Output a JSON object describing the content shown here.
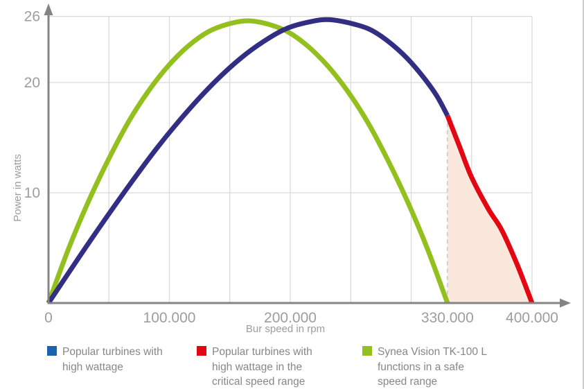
{
  "chart_data": {
    "type": "line",
    "xlabel": "Bur speed in rpm",
    "ylabel": "Power in watts",
    "xlim": [
      0,
      430000
    ],
    "ylim": [
      0,
      27.5
    ],
    "grid": {
      "x_interval": 50000,
      "x_max": 400000,
      "y_values": [
        10,
        20,
        26
      ],
      "color": "#dadada"
    },
    "x_ticks": [
      {
        "value": 0,
        "label": "0"
      },
      {
        "value": 100000,
        "label": "100.000"
      },
      {
        "value": 200000,
        "label": "200.000"
      },
      {
        "value": 330000,
        "label": "330.000"
      },
      {
        "value": 400000,
        "label": "400.000"
      }
    ],
    "y_ticks": [
      {
        "value": 10,
        "label": "10"
      },
      {
        "value": 20,
        "label": "20"
      },
      {
        "value": 26,
        "label": "26"
      }
    ],
    "axis_color": "#848484",
    "series": [
      {
        "name": "Synea Vision TK-100 L functions in a safe speed range",
        "color": "#93c01f",
        "points": [
          [
            0,
            0
          ],
          [
            16500,
            4.9
          ],
          [
            33000,
            9.2
          ],
          [
            49500,
            13.0
          ],
          [
            66000,
            16.4
          ],
          [
            82500,
            19.2
          ],
          [
            99000,
            21.5
          ],
          [
            115500,
            23.3
          ],
          [
            132000,
            24.6
          ],
          [
            148500,
            25.3
          ],
          [
            165000,
            25.6
          ],
          [
            181500,
            25.3
          ],
          [
            198000,
            24.6
          ],
          [
            214500,
            23.3
          ],
          [
            231000,
            21.5
          ],
          [
            247500,
            19.2
          ],
          [
            264000,
            16.4
          ],
          [
            280500,
            13.0
          ],
          [
            297000,
            9.2
          ],
          [
            313500,
            4.9
          ],
          [
            330000,
            0
          ]
        ]
      },
      {
        "name": "Popular turbines with high wattage",
        "color": "#312e83",
        "points": [
          [
            0,
            0
          ],
          [
            33000,
            5.4
          ],
          [
            63000,
            10.1
          ],
          [
            90000,
            14.1
          ],
          [
            115000,
            17.4
          ],
          [
            138000,
            20.1
          ],
          [
            159000,
            22.2
          ],
          [
            179000,
            23.8
          ],
          [
            197000,
            24.9
          ],
          [
            216000,
            25.5
          ],
          [
            233000,
            25.7
          ],
          [
            256000,
            25.2
          ],
          [
            271000,
            24.5
          ],
          [
            289000,
            23.0
          ],
          [
            304000,
            21.3
          ],
          [
            320000,
            19.0
          ],
          [
            330000,
            17.0
          ]
        ]
      },
      {
        "name": "Popular turbines with high wattage in the critical speed range",
        "color": "#e30613",
        "points": [
          [
            330000,
            17.0
          ],
          [
            340000,
            14.2
          ],
          [
            350000,
            11.4
          ],
          [
            364000,
            8.5
          ],
          [
            375000,
            6.6
          ],
          [
            388000,
            3.4
          ],
          [
            400000,
            0
          ]
        ]
      }
    ],
    "critical_region": {
      "x_start": 330000,
      "x_end": 400000,
      "fill": "#fbe8dc",
      "boundary_color": "#d0d0d0",
      "boundary_style": "dashed"
    }
  },
  "legend": {
    "items": [
      {
        "swatch_color": "#1b63ae",
        "lines": [
          "Popular turbines with",
          "high wattage"
        ]
      },
      {
        "swatch_color": "#e30613",
        "lines": [
          "Popular turbines with",
          "high wattage in the",
          "critical speed range"
        ]
      },
      {
        "swatch_color": "#93c01f",
        "lines": [
          "Synea Vision TK-100 L",
          "functions in a safe",
          "speed range"
        ]
      }
    ]
  }
}
